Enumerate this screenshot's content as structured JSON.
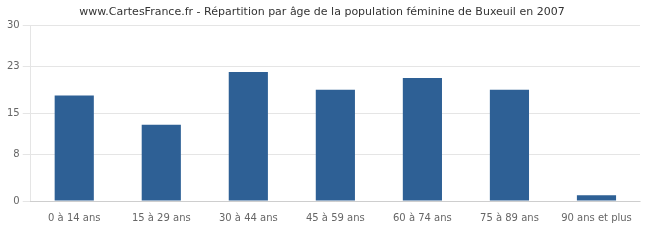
{
  "chart_data": {
    "type": "bar",
    "title": "www.CartesFrance.fr - Répartition par âge de la population féminine de Buxeuil en 2007",
    "categories": [
      "0 à 14 ans",
      "15 à 29 ans",
      "30 à 44 ans",
      "45 à 59 ans",
      "60 à 74 ans",
      "75 à 89 ans",
      "90 ans et plus"
    ],
    "values": [
      18,
      13,
      22,
      19,
      21,
      19,
      1
    ],
    "color": "#2e6095",
    "ylim": [
      0,
      30
    ],
    "yticks": [
      0,
      8,
      15,
      23,
      30
    ],
    "grid": true
  }
}
